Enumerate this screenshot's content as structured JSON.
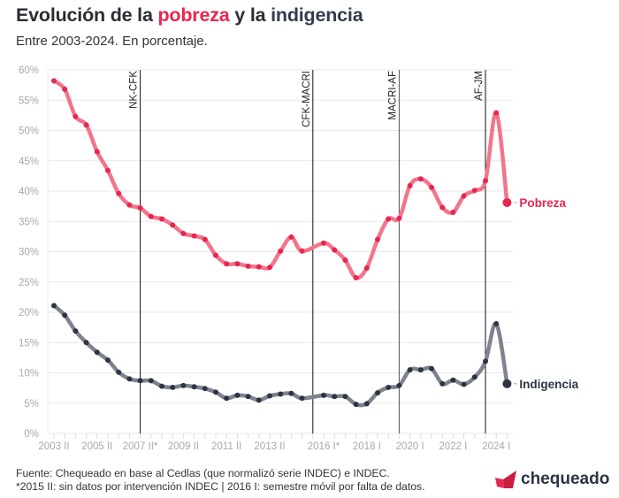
{
  "header": {
    "title_part1": "Evolución de la ",
    "title_pobreza": "pobreza",
    "title_part2": " y la ",
    "title_indigencia": "indigencia",
    "subtitle": "Entre 2003-2024. En porcentaje."
  },
  "footer": {
    "source": "Fuente: Chequeado en base al Cedlas (que normalizó serie INDEC) e INDEC.",
    "note": "*2015 II: sin datos por intervención INDEC | 2016 I: semestre móvil por falta de datos.",
    "logo": "chequeado"
  },
  "colors": {
    "pobreza": "#e8264f",
    "pobreza_line": "#f2758c",
    "indigencia": "#2d3444",
    "indigencia_line": "#7e838d",
    "logo_red": "#e8264f"
  },
  "chart_data": {
    "type": "line",
    "title": "Evolución de la pobreza y la indigencia",
    "subtitle": "Entre 2003-2024. En porcentaje.",
    "xlabel": "",
    "ylabel": "",
    "ylim": [
      0,
      60
    ],
    "yticks": [
      "0%",
      "5%",
      "10%",
      "15%",
      "20%",
      "25%",
      "30%",
      "35%",
      "40%",
      "45%",
      "50%",
      "55%",
      "60%"
    ],
    "ytick_values": [
      0,
      5,
      10,
      15,
      20,
      25,
      30,
      35,
      40,
      45,
      50,
      55,
      60
    ],
    "grid": true,
    "x": [
      "2003 II",
      "2004 I",
      "2004 II",
      "2005 I",
      "2005 II",
      "2006 I",
      "2006 II",
      "2007 I",
      "2007 II",
      "2008 I",
      "2008 II",
      "2009 I",
      "2009 II",
      "2010 I",
      "2010 II",
      "2011 I",
      "2011 II",
      "2012 I",
      "2012 II",
      "2013 I",
      "2013 II",
      "2014 I",
      "2014 II",
      "2015 I",
      "2015 II",
      "2016 I",
      "2016 II",
      "2017 I",
      "2017 II",
      "2018 I",
      "2018 II",
      "2019 I",
      "2019 II",
      "2020 I",
      "2020 II",
      "2021 I",
      "2021 II",
      "2022 I",
      "2022 II",
      "2023 I",
      "2023 II",
      "2024 I",
      "2024 II"
    ],
    "xtick_labels": [
      {
        "label": "2003 II",
        "index": 0
      },
      {
        "label": "2005 II",
        "index": 4
      },
      {
        "label": "2007 II*",
        "index": 8
      },
      {
        "label": "2009 II",
        "index": 12
      },
      {
        "label": "2011 II",
        "index": 16
      },
      {
        "label": "2013 II",
        "index": 20
      },
      {
        "label": "2016 I*",
        "index": 25
      },
      {
        "label": "2018 I",
        "index": 29
      },
      {
        "label": "2020 I",
        "index": 33
      },
      {
        "label": "2022 I",
        "index": 37
      },
      {
        "label": "2024 I",
        "index": 41
      }
    ],
    "series": [
      {
        "name": "Pobreza",
        "values": [
          58.2,
          56.8,
          52.3,
          50.9,
          46.5,
          43.4,
          39.6,
          37.7,
          37.2,
          35.8,
          35.4,
          34.4,
          33.0,
          32.6,
          32.0,
          29.4,
          28.0,
          28.0,
          27.6,
          27.5,
          27.4,
          30.1,
          32.4,
          30.1,
          null,
          31.4,
          30.3,
          28.6,
          25.7,
          27.3,
          32.0,
          35.4,
          35.5,
          40.9,
          42.0,
          40.6,
          37.3,
          36.5,
          39.2,
          40.1,
          41.7,
          52.9,
          38.1
        ]
      },
      {
        "name": "Indigencia",
        "values": [
          21.1,
          19.5,
          16.9,
          15.0,
          13.4,
          12.1,
          10.1,
          9.0,
          8.7,
          8.7,
          7.8,
          7.6,
          7.9,
          7.7,
          7.4,
          6.8,
          5.8,
          6.3,
          6.1,
          5.5,
          6.2,
          6.5,
          6.6,
          5.8,
          null,
          6.3,
          6.1,
          6.1,
          4.8,
          4.9,
          6.7,
          7.6,
          7.9,
          10.5,
          10.5,
          10.7,
          8.2,
          8.8,
          8.1,
          9.3,
          11.9,
          18.1,
          8.2
        ]
      }
    ],
    "annotations": [
      {
        "label": "NK-CFK",
        "index": 8
      },
      {
        "label": "CFK-MACRI",
        "index": 24
      },
      {
        "label": "MACRI-AF",
        "index": 32
      },
      {
        "label": "AF-JM",
        "index": 40
      }
    ],
    "legend": "direct labels at right end of lines"
  }
}
